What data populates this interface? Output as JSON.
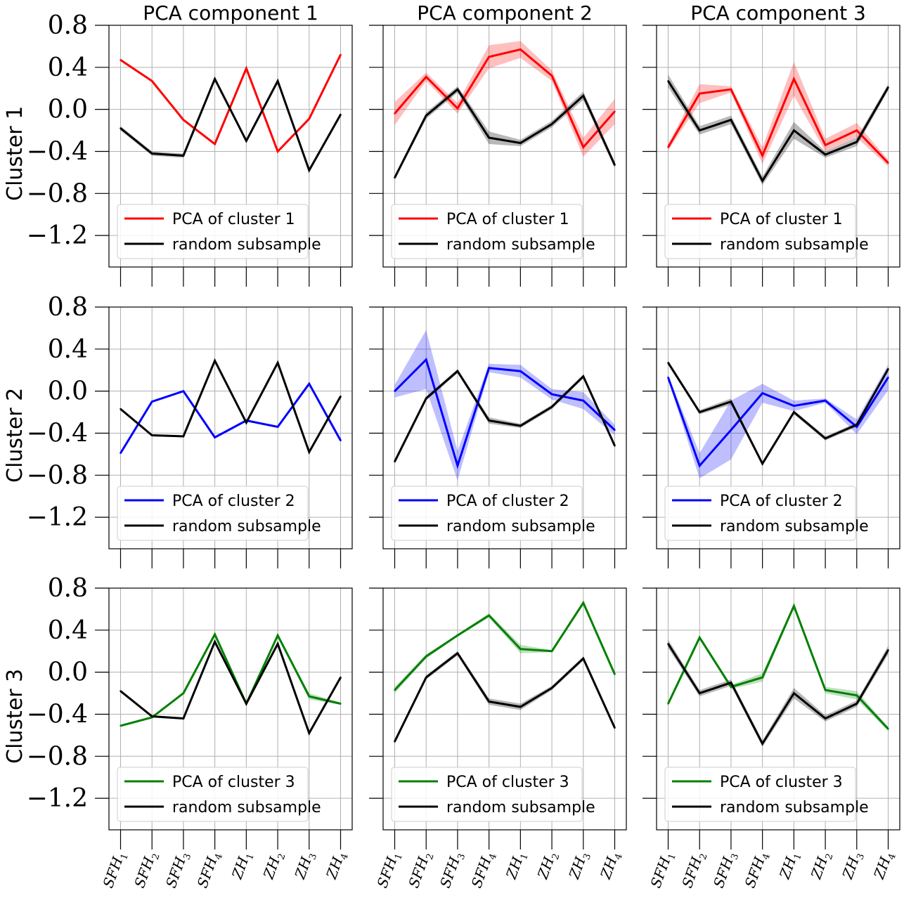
{
  "figure": {
    "column_titles": [
      "PCA component 1",
      "PCA component 2",
      "PCA component 3"
    ],
    "row_labels": [
      "Cluster 1",
      "Cluster 2",
      "Cluster 3"
    ],
    "colors": {
      "cluster_1": "#ff0000",
      "cluster_2": "#0000ff",
      "cluster_3": "#008000",
      "random": "#000000"
    }
  },
  "chart_data": {
    "type": "line",
    "grid": true,
    "legend_position": "lower-left",
    "ylim": [
      -1.5,
      0.8
    ],
    "yticks": [
      "0.8",
      "0.4",
      "0.0",
      "−0.4",
      "−0.8",
      "−1.2"
    ],
    "ytick_values": [
      0.8,
      0.4,
      0.0,
      -0.4,
      -0.8,
      -1.2
    ],
    "x_categories": [
      {
        "base": "SFH",
        "sub": "1"
      },
      {
        "base": "SFH",
        "sub": "2"
      },
      {
        "base": "SFH",
        "sub": "3"
      },
      {
        "base": "SFH",
        "sub": "4"
      },
      {
        "base": "ZH",
        "sub": "1"
      },
      {
        "base": "ZH",
        "sub": "2"
      },
      {
        "base": "ZH",
        "sub": "3"
      },
      {
        "base": "ZH",
        "sub": "4"
      }
    ],
    "panels": [
      {
        "row": 1,
        "col": 1,
        "color_key": "cluster_1",
        "series": [
          {
            "name": "PCA of cluster 1",
            "values": [
              0.47,
              0.27,
              -0.1,
              -0.33,
              0.39,
              -0.4,
              -0.09,
              0.52
            ],
            "band": [
              0.01,
              0.01,
              0.01,
              0.01,
              0.01,
              0.01,
              0.01,
              0.01
            ]
          },
          {
            "name": "random subsample",
            "values": [
              -0.18,
              -0.42,
              -0.44,
              0.29,
              -0.3,
              0.27,
              -0.58,
              -0.05
            ],
            "band": [
              0.02,
              0.02,
              0.02,
              0.02,
              0.02,
              0.02,
              0.02,
              0.02
            ]
          }
        ]
      },
      {
        "row": 1,
        "col": 2,
        "color_key": "cluster_1",
        "series": [
          {
            "name": "PCA of cluster 1",
            "values": [
              -0.04,
              0.31,
              0.01,
              0.5,
              0.57,
              0.32,
              -0.36,
              -0.02
            ],
            "band": [
              0.11,
              0.04,
              0.05,
              0.11,
              0.08,
              0.05,
              0.09,
              0.12
            ]
          },
          {
            "name": "random subsample",
            "values": [
              -0.65,
              -0.06,
              0.19,
              -0.27,
              -0.32,
              -0.14,
              0.13,
              -0.53
            ],
            "band": [
              0.02,
              0.03,
              0.03,
              0.06,
              0.03,
              0.03,
              0.04,
              0.03
            ]
          }
        ]
      },
      {
        "row": 1,
        "col": 3,
        "color_key": "cluster_1",
        "series": [
          {
            "name": "PCA of cluster 1",
            "values": [
              -0.36,
              0.15,
              0.19,
              -0.44,
              0.29,
              -0.34,
              -0.2,
              -0.51
            ],
            "band": [
              0.03,
              0.09,
              0.03,
              0.08,
              0.16,
              0.06,
              0.07,
              0.03
            ]
          },
          {
            "name": "random subsample",
            "values": [
              0.27,
              -0.2,
              -0.1,
              -0.68,
              -0.2,
              -0.43,
              -0.31,
              0.21
            ],
            "band": [
              0.06,
              0.04,
              0.04,
              0.04,
              0.08,
              0.03,
              0.04,
              0.03
            ]
          }
        ]
      },
      {
        "row": 2,
        "col": 1,
        "color_key": "cluster_2",
        "series": [
          {
            "name": "PCA of cluster 2",
            "values": [
              -0.59,
              -0.1,
              0.0,
              -0.44,
              -0.28,
              -0.34,
              0.07,
              -0.47
            ],
            "band": [
              0.01,
              0.01,
              0.01,
              0.01,
              0.01,
              0.01,
              0.01,
              0.01
            ]
          },
          {
            "name": "random subsample",
            "values": [
              -0.17,
              -0.42,
              -0.43,
              0.29,
              -0.3,
              0.27,
              -0.58,
              -0.05
            ],
            "band": [
              0.01,
              0.01,
              0.01,
              0.01,
              0.01,
              0.01,
              0.01,
              0.01
            ]
          }
        ]
      },
      {
        "row": 2,
        "col": 2,
        "color_key": "cluster_2",
        "series": [
          {
            "name": "PCA of cluster 2",
            "values": [
              0.0,
              0.3,
              -0.71,
              0.22,
              0.19,
              -0.03,
              -0.09,
              -0.37
            ],
            "band": [
              0.06,
              0.28,
              0.14,
              0.04,
              0.06,
              0.05,
              0.08,
              0.05
            ]
          },
          {
            "name": "random subsample",
            "values": [
              -0.67,
              -0.07,
              0.19,
              -0.28,
              -0.33,
              -0.15,
              0.14,
              -0.52
            ],
            "band": [
              0.02,
              0.02,
              0.02,
              0.03,
              0.02,
              0.02,
              0.02,
              0.02
            ]
          }
        ]
      },
      {
        "row": 2,
        "col": 3,
        "color_key": "cluster_2",
        "series": [
          {
            "name": "PCA of cluster 2",
            "values": [
              0.13,
              -0.71,
              -0.37,
              -0.02,
              -0.14,
              -0.09,
              -0.34,
              0.13
            ],
            "band": [
              0.02,
              0.12,
              0.28,
              0.09,
              0.05,
              0.02,
              0.07,
              0.12
            ]
          },
          {
            "name": "random subsample",
            "values": [
              0.27,
              -0.2,
              -0.1,
              -0.69,
              -0.2,
              -0.45,
              -0.32,
              0.21
            ],
            "band": [
              0.02,
              0.02,
              0.03,
              0.02,
              0.02,
              0.02,
              0.02,
              0.02
            ]
          }
        ]
      },
      {
        "row": 3,
        "col": 1,
        "color_key": "cluster_3",
        "series": [
          {
            "name": "PCA of cluster 3",
            "values": [
              -0.51,
              -0.43,
              -0.2,
              0.36,
              -0.3,
              0.35,
              -0.23,
              -0.3
            ],
            "band": [
              0.01,
              0.01,
              0.01,
              0.02,
              0.01,
              0.01,
              0.03,
              0.01
            ]
          },
          {
            "name": "random subsample",
            "values": [
              -0.18,
              -0.42,
              -0.44,
              0.29,
              -0.3,
              0.27,
              -0.58,
              -0.05
            ],
            "band": [
              0.01,
              0.01,
              0.01,
              0.01,
              0.01,
              0.01,
              0.01,
              0.01
            ]
          }
        ]
      },
      {
        "row": 3,
        "col": 2,
        "color_key": "cluster_3",
        "series": [
          {
            "name": "PCA of cluster 3",
            "values": [
              -0.17,
              0.15,
              0.35,
              0.54,
              0.22,
              0.2,
              0.66,
              -0.02
            ],
            "band": [
              0.03,
              0.02,
              0.01,
              0.02,
              0.04,
              0.01,
              0.02,
              0.01
            ]
          },
          {
            "name": "random subsample",
            "values": [
              -0.66,
              -0.05,
              0.18,
              -0.28,
              -0.33,
              -0.15,
              0.13,
              -0.53
            ],
            "band": [
              0.02,
              0.02,
              0.02,
              0.03,
              0.03,
              0.02,
              0.02,
              0.02
            ]
          }
        ]
      },
      {
        "row": 3,
        "col": 3,
        "color_key": "cluster_3",
        "series": [
          {
            "name": "PCA of cluster 3",
            "values": [
              -0.3,
              0.33,
              -0.14,
              -0.05,
              0.63,
              -0.17,
              -0.22,
              -0.54
            ],
            "band": [
              0.02,
              0.02,
              0.02,
              0.04,
              0.02,
              0.03,
              0.04,
              0.02
            ]
          },
          {
            "name": "random subsample",
            "values": [
              0.27,
              -0.2,
              -0.1,
              -0.68,
              -0.2,
              -0.44,
              -0.3,
              0.21
            ],
            "band": [
              0.04,
              0.03,
              0.03,
              0.03,
              0.05,
              0.03,
              0.03,
              0.04
            ]
          }
        ]
      }
    ]
  }
}
